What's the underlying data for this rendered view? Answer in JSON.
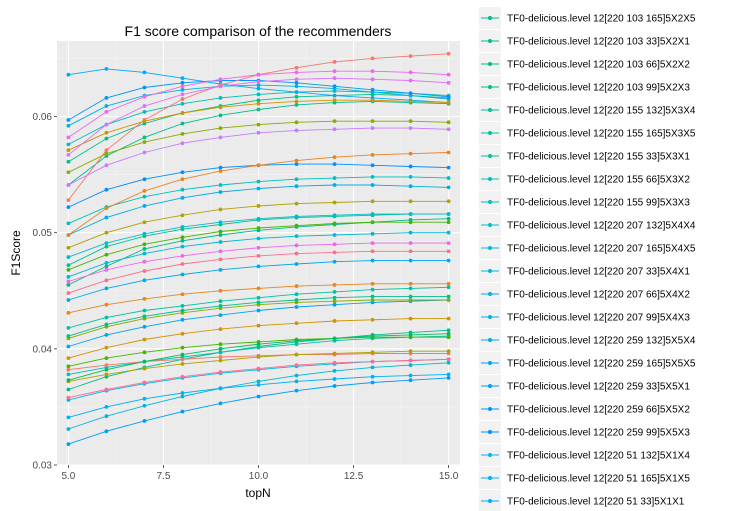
{
  "chart_data": {
    "type": "line",
    "title": "F1 score comparison of the recommenders",
    "xlabel": "topN",
    "ylabel": "F1Score",
    "xlim": [
      4.7,
      15.3
    ],
    "ylim": [
      0.03,
      0.0665
    ],
    "x_ticks": [
      5.0,
      7.5,
      10.0,
      12.5,
      15.0
    ],
    "x_tick_labels": [
      "5.0",
      "7.5",
      "10.0",
      "12.5",
      "15.0"
    ],
    "y_ticks": [
      0.03,
      0.04,
      0.05,
      0.06
    ],
    "y_tick_labels": [
      "0.03",
      "0.04",
      "0.05",
      "0.06"
    ],
    "x": [
      5,
      6,
      7,
      8,
      9,
      10,
      11,
      12,
      13,
      14,
      15
    ],
    "grid": true,
    "legend_position": "right",
    "series": [
      {
        "name": "TF0-delicious.level 12[220 103 165]5X2X5",
        "color": "#00BA8E",
        "values": [
          0.0455,
          0.0471,
          0.0486,
          0.0493,
          0.0498,
          0.0502,
          0.0505,
          0.0507,
          0.0509,
          0.0511,
          0.0512
        ]
      },
      {
        "name": "TF0-delicious.level 12[220 103 33]5X2X1",
        "color": "#00BC8C",
        "values": [
          0.0365,
          0.0376,
          0.0384,
          0.0391,
          0.0397,
          0.0402,
          0.0406,
          0.0409,
          0.0412,
          0.0414,
          0.0416
        ]
      },
      {
        "name": "TF0-delicious.level 12[220 103 66]5X2X2",
        "color": "#00BE89",
        "values": [
          0.0541,
          0.0566,
          0.0582,
          0.0594,
          0.0601,
          0.0606,
          0.061,
          0.0612,
          0.0613,
          0.0612,
          0.0611
        ]
      },
      {
        "name": "TF0-delicious.level 12[220 103 99]5X2X3",
        "color": "#00BF86",
        "values": [
          0.0561,
          0.0581,
          0.0594,
          0.0603,
          0.0609,
          0.0614,
          0.0617,
          0.0618,
          0.0619,
          0.0618,
          0.0616
        ]
      },
      {
        "name": "TF0-delicious.level 12[220 155 132]5X3X4",
        "color": "#00C094",
        "values": [
          0.0472,
          0.0488,
          0.0497,
          0.0503,
          0.0507,
          0.0511,
          0.0513,
          0.0514,
          0.0515,
          0.0516,
          0.0516
        ]
      },
      {
        "name": "TF0-delicious.level 12[220 155 165]5X3X5",
        "color": "#00C1A0",
        "values": [
          0.0418,
          0.0427,
          0.0433,
          0.0437,
          0.0441,
          0.0444,
          0.0447,
          0.0449,
          0.0451,
          0.0452,
          0.0453
        ]
      },
      {
        "name": "TF0-delicious.level 12[220 155 33]5X3X1",
        "color": "#00C1AB",
        "values": [
          0.0378,
          0.0384,
          0.0389,
          0.0393,
          0.0397,
          0.0401,
          0.0404,
          0.0407,
          0.0409,
          0.041,
          0.0411
        ]
      },
      {
        "name": "TF0-delicious.level 12[220 155 66]5X3X2",
        "color": "#00C0B5",
        "values": [
          0.0576,
          0.0593,
          0.0604,
          0.0611,
          0.0616,
          0.0619,
          0.0621,
          0.0622,
          0.0621,
          0.062,
          0.0618
        ]
      },
      {
        "name": "TF0-delicious.level 12[220 155 99]5X3X3",
        "color": "#00BFBF",
        "values": [
          0.0508,
          0.0522,
          0.0531,
          0.0537,
          0.0541,
          0.0544,
          0.0546,
          0.0547,
          0.0548,
          0.0548,
          0.0547
        ]
      },
      {
        "name": "TF0-delicious.level 12[220 207 132]5X4X4",
        "color": "#00BDC8",
        "values": [
          0.0479,
          0.0491,
          0.0499,
          0.0505,
          0.0509,
          0.0512,
          0.0514,
          0.0515,
          0.0516,
          0.0516,
          0.0516
        ]
      },
      {
        "name": "TF0-delicious.level 12[220 207 165]5X4X5",
        "color": "#00BAD1",
        "values": [
          0.0462,
          0.0474,
          0.0482,
          0.0488,
          0.0492,
          0.0495,
          0.0497,
          0.0498,
          0.0499,
          0.05,
          0.05
        ]
      },
      {
        "name": "TF0-delicious.level 12[220 207 33]5X4X1",
        "color": "#00B6D9",
        "values": [
          0.0331,
          0.0342,
          0.0351,
          0.0359,
          0.0366,
          0.0372,
          0.0377,
          0.0381,
          0.0384,
          0.0386,
          0.0388
        ]
      },
      {
        "name": "TF0-delicious.level 12[220 207 66]5X4X2",
        "color": "#00B2E0",
        "values": [
          0.0592,
          0.0609,
          0.0618,
          0.0623,
          0.0626,
          0.0627,
          0.0626,
          0.0624,
          0.0621,
          0.0618,
          0.0615
        ]
      },
      {
        "name": "TF0-delicious.level 12[220 207 99]5X4X3",
        "color": "#00ADE7",
        "values": [
          0.0498,
          0.0513,
          0.0523,
          0.053,
          0.0535,
          0.0538,
          0.054,
          0.0541,
          0.0541,
          0.054,
          0.0539
        ]
      },
      {
        "name": "TF0-delicious.level 12[220 259 132]5X5X4",
        "color": "#00A8ED",
        "values": [
          0.0442,
          0.0452,
          0.0459,
          0.0464,
          0.0468,
          0.0471,
          0.0473,
          0.0475,
          0.0476,
          0.0476,
          0.0476
        ]
      },
      {
        "name": "TF0-delicious.level 12[220 259 165]5X5X5",
        "color": "#00A3F2",
        "values": [
          0.0402,
          0.0412,
          0.0419,
          0.0425,
          0.0429,
          0.0433,
          0.0436,
          0.0438,
          0.044,
          0.0441,
          0.0442
        ]
      },
      {
        "name": "TF0-delicious.level 12[220 259 33]5X5X1",
        "color": "#009DF6",
        "values": [
          0.0318,
          0.0329,
          0.0338,
          0.0346,
          0.0353,
          0.0359,
          0.0364,
          0.0368,
          0.0371,
          0.0373,
          0.0375
        ]
      },
      {
        "name": "TF0-delicious.level 12[220 259 66]5X5X2",
        "color": "#0096F9",
        "values": [
          0.0597,
          0.0616,
          0.0625,
          0.0629,
          0.0631,
          0.0631,
          0.0629,
          0.0626,
          0.0623,
          0.062,
          0.0617
        ]
      },
      {
        "name": "TF0-delicious.level 12[220 259 99]5X5X3",
        "color": "#008FFC",
        "values": [
          0.0522,
          0.0537,
          0.0546,
          0.0552,
          0.0556,
          0.0558,
          0.0559,
          0.0559,
          0.0558,
          0.0557,
          0.0556
        ]
      },
      {
        "name": "TF0-delicious.level 12[220 51 132]5X1X4",
        "color": "#00B6EB",
        "values": [
          0.0356,
          0.0364,
          0.037,
          0.0375,
          0.0379,
          0.0382,
          0.0385,
          0.0387,
          0.0389,
          0.039,
          0.0391
        ]
      },
      {
        "name": "TF0-delicious.level 12[220 51 165]5X1X5",
        "color": "#00B0F6",
        "values": [
          0.0341,
          0.035,
          0.0357,
          0.0362,
          0.0366,
          0.0369,
          0.0372,
          0.0374,
          0.0376,
          0.0377,
          0.0378
        ]
      },
      {
        "name": "TF0-delicious.level 12[220 51 33]5X1X1",
        "color": "#00A9FF",
        "values": [
          0.0636,
          0.0641,
          0.0638,
          0.0633,
          0.0628,
          0.0624,
          0.0621,
          0.0618,
          0.0616,
          0.0614,
          0.0612
        ]
      },
      {
        "name": "",
        "color": "#F8766D",
        "values": [
          0.0528,
          0.0571,
          0.0597,
          0.0615,
          0.0627,
          0.0636,
          0.0642,
          0.0647,
          0.065,
          0.0652,
          0.0654
        ]
      },
      {
        "name": "",
        "color": "#F8766D",
        "values": [
          0.0382,
          0.0386,
          0.0389,
          0.0391,
          0.0393,
          0.0394,
          0.0395,
          0.0395,
          0.0396,
          0.0396,
          0.0396
        ]
      },
      {
        "name": "",
        "color": "#E7851E",
        "values": [
          0.0498,
          0.0521,
          0.0536,
          0.0546,
          0.0553,
          0.0558,
          0.0562,
          0.0565,
          0.0567,
          0.0568,
          0.0569
        ]
      },
      {
        "name": "",
        "color": "#E7851E",
        "values": [
          0.0431,
          0.0438,
          0.0443,
          0.0447,
          0.045,
          0.0452,
          0.0454,
          0.0455,
          0.0456,
          0.0456,
          0.0456
        ]
      },
      {
        "name": "",
        "color": "#D09400",
        "values": [
          0.0571,
          0.0586,
          0.0596,
          0.0603,
          0.0608,
          0.0611,
          0.0613,
          0.0614,
          0.0614,
          0.0613,
          0.0612
        ]
      },
      {
        "name": "",
        "color": "#D09400",
        "values": [
          0.0392,
          0.0401,
          0.0408,
          0.0413,
          0.0417,
          0.042,
          0.0422,
          0.0424,
          0.0425,
          0.0426,
          0.0426
        ]
      },
      {
        "name": "",
        "color": "#B2A100",
        "values": [
          0.0487,
          0.05,
          0.0509,
          0.0515,
          0.052,
          0.0523,
          0.0525,
          0.0526,
          0.0527,
          0.0527,
          0.0527
        ]
      },
      {
        "name": "",
        "color": "#B2A100",
        "values": [
          0.0372,
          0.0378,
          0.0383,
          0.0387,
          0.039,
          0.0393,
          0.0395,
          0.0396,
          0.0397,
          0.0398,
          0.0398
        ]
      },
      {
        "name": "",
        "color": "#89AC00",
        "values": [
          0.0552,
          0.0568,
          0.0578,
          0.0585,
          0.059,
          0.0593,
          0.0595,
          0.0596,
          0.0596,
          0.0596,
          0.0595
        ]
      },
      {
        "name": "",
        "color": "#89AC00",
        "values": [
          0.0409,
          0.0419,
          0.0426,
          0.0431,
          0.0435,
          0.0438,
          0.044,
          0.0441,
          0.0442,
          0.0442,
          0.0442
        ]
      },
      {
        "name": "",
        "color": "#45B500",
        "values": [
          0.0468,
          0.0481,
          0.049,
          0.0496,
          0.0501,
          0.0504,
          0.0506,
          0.0508,
          0.0509,
          0.0509,
          0.0509
        ]
      },
      {
        "name": "",
        "color": "#45B500",
        "values": [
          0.0385,
          0.0392,
          0.0397,
          0.0401,
          0.0404,
          0.0406,
          0.0408,
          0.0409,
          0.041,
          0.041,
          0.041
        ]
      },
      {
        "name": "",
        "color": "#F066EA",
        "values": [
          0.0582,
          0.0604,
          0.0617,
          0.0626,
          0.0632,
          0.0636,
          0.0638,
          0.0639,
          0.0639,
          0.0638,
          0.0636
        ]
      },
      {
        "name": "",
        "color": "#F066EA",
        "values": [
          0.0458,
          0.0468,
          0.0475,
          0.048,
          0.0484,
          0.0487,
          0.0489,
          0.049,
          0.0491,
          0.0491,
          0.0491
        ]
      },
      {
        "name": "",
        "color": "#DC71FA",
        "values": [
          0.0567,
          0.0593,
          0.0609,
          0.0619,
          0.0626,
          0.063,
          0.0632,
          0.0633,
          0.0632,
          0.0631,
          0.0629
        ]
      },
      {
        "name": "",
        "color": "#C77CFF",
        "values": [
          0.0541,
          0.0558,
          0.0569,
          0.0577,
          0.0582,
          0.0586,
          0.0588,
          0.0589,
          0.059,
          0.059,
          0.0589
        ]
      },
      {
        "name": "",
        "color": "#FF6C91",
        "values": [
          0.0448,
          0.0459,
          0.0467,
          0.0473,
          0.0477,
          0.048,
          0.0482,
          0.0483,
          0.0484,
          0.0484,
          0.0484
        ]
      },
      {
        "name": "",
        "color": "#FF6C91",
        "values": [
          0.0358,
          0.0365,
          0.0371,
          0.0376,
          0.038,
          0.0383,
          0.0386,
          0.0388,
          0.0389,
          0.039,
          0.0391
        ]
      },
      {
        "name": "",
        "color": "#00C08B",
        "values": [
          0.0411,
          0.0421,
          0.0428,
          0.0433,
          0.0437,
          0.044,
          0.0442,
          0.0444,
          0.0445,
          0.0445,
          0.0445
        ]
      },
      {
        "name": "",
        "color": "#00BD5C",
        "values": [
          0.0373,
          0.0382,
          0.0389,
          0.0395,
          0.04,
          0.0404,
          0.0407,
          0.0409,
          0.0411,
          0.0412,
          0.0413
        ]
      }
    ]
  }
}
